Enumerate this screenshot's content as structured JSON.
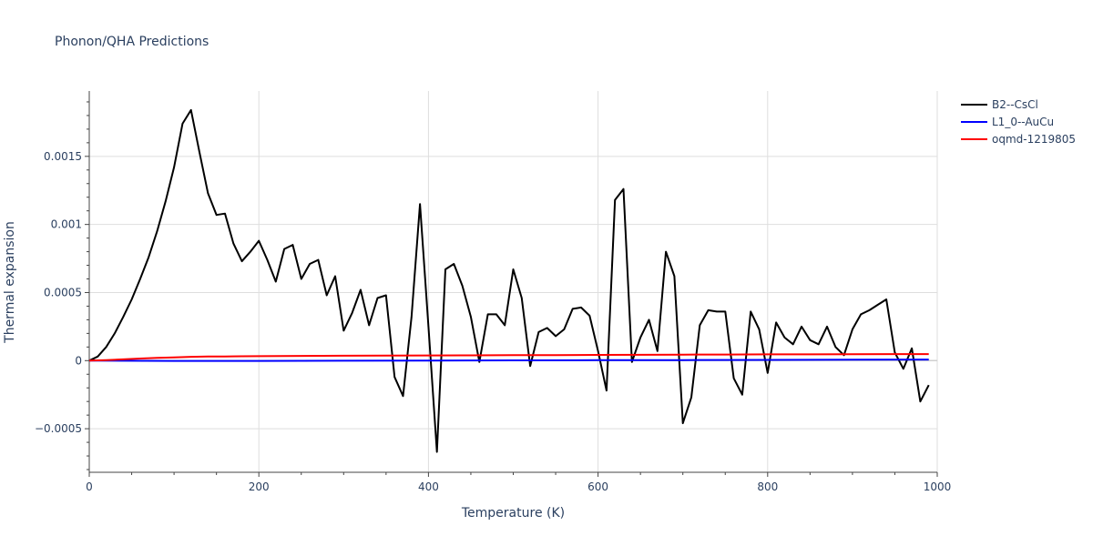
{
  "chart_data": {
    "type": "line",
    "title": "Phonon/QHA Predictions",
    "xlabel": "Temperature (K)",
    "ylabel": "Thermal expansion",
    "xlim": [
      0,
      1000
    ],
    "ylim": [
      -0.00082,
      0.00198
    ],
    "x_ticks": [
      0,
      200,
      400,
      600,
      800,
      1000
    ],
    "x_tick_labels": [
      "0",
      "200",
      "400",
      "600",
      "800",
      "1000"
    ],
    "y_ticks": [
      -0.0005,
      0,
      0.0005,
      0.001,
      0.0015
    ],
    "y_tick_labels": [
      "−0.0005",
      "0",
      "0.0005",
      "0.001",
      "0.0015"
    ],
    "grid": true,
    "legend_position": "top-right",
    "series": [
      {
        "name": "B2--CsCl",
        "color": "#000000",
        "x": [
          0,
          10,
          20,
          30,
          40,
          50,
          60,
          70,
          80,
          90,
          100,
          110,
          120,
          130,
          140,
          150,
          160,
          170,
          180,
          190,
          200,
          210,
          220,
          230,
          240,
          250,
          260,
          270,
          280,
          290,
          300,
          310,
          320,
          330,
          340,
          350,
          360,
          370,
          380,
          390,
          400,
          410,
          420,
          430,
          440,
          450,
          460,
          470,
          480,
          490,
          500,
          510,
          520,
          530,
          540,
          550,
          560,
          570,
          580,
          590,
          600,
          610,
          620,
          630,
          640,
          650,
          660,
          670,
          680,
          690,
          700,
          710,
          720,
          730,
          740,
          750,
          760,
          770,
          780,
          790,
          800,
          810,
          820,
          830,
          840,
          850,
          860,
          870,
          880,
          890,
          900,
          910,
          920,
          930,
          940,
          950,
          960,
          970,
          980,
          990
        ],
        "y": [
          0,
          3e-05,
          0.0001,
          0.0002,
          0.00032,
          0.00045,
          0.0006,
          0.00076,
          0.00095,
          0.00117,
          0.00142,
          0.00174,
          0.00184,
          0.00153,
          0.00123,
          0.00107,
          0.00108,
          0.00086,
          0.00073,
          0.0008,
          0.00088,
          0.00074,
          0.00058,
          0.00082,
          0.00085,
          0.0006,
          0.00071,
          0.00074,
          0.00048,
          0.00062,
          0.00022,
          0.00035,
          0.00052,
          0.00026,
          0.00046,
          0.00048,
          -0.00012,
          -0.00026,
          0.00032,
          0.00115,
          0.00025,
          -0.00067,
          0.00067,
          0.00071,
          0.00055,
          0.00032,
          -1e-05,
          0.00034,
          0.00034,
          0.00026,
          0.00067,
          0.00046,
          -4e-05,
          0.00021,
          0.00024,
          0.00018,
          0.00023,
          0.00038,
          0.00039,
          0.00033,
          7e-05,
          -0.00022,
          0.00118,
          0.00126,
          -1e-05,
          0.00017,
          0.0003,
          7e-05,
          0.0008,
          0.00062,
          -0.00046,
          -0.00027,
          0.00026,
          0.00037,
          0.00036,
          0.00036,
          -0.00013,
          -0.00025,
          0.00036,
          0.00023,
          -9e-05,
          0.00028,
          0.00017,
          0.00012,
          0.00025,
          0.00015,
          0.00012,
          0.00025,
          0.0001,
          4e-05,
          0.00023,
          0.00034,
          0.00037,
          0.00041,
          0.00045,
          6e-05,
          -6e-05,
          9e-05,
          -0.0003,
          -0.00018
        ]
      },
      {
        "name": "L1_0--AuCu",
        "color": "#0000ff",
        "x": [
          0,
          100,
          200,
          300,
          400,
          500,
          600,
          700,
          800,
          900,
          990
        ],
        "y": [
          0,
          -2e-06,
          -2e-06,
          -1e-06,
          0,
          2e-06,
          3e-06,
          4e-06,
          5e-06,
          7e-06,
          8e-06
        ]
      },
      {
        "name": "oqmd-1219805",
        "color": "#ff0000",
        "x": [
          0,
          20,
          40,
          60,
          80,
          100,
          120,
          140,
          160,
          180,
          200,
          250,
          300,
          350,
          400,
          450,
          500,
          550,
          600,
          650,
          700,
          750,
          800,
          850,
          900,
          950,
          990
        ],
        "y": [
          0,
          4e-06,
          9e-06,
          1.5e-05,
          2e-05,
          2.4e-05,
          2.8e-05,
          3e-05,
          3.1e-05,
          3.2e-05,
          3.3e-05,
          3.5e-05,
          3.6e-05,
          3.7e-05,
          3.8e-05,
          3.9e-05,
          4e-05,
          4.1e-05,
          4.2e-05,
          4.3e-05,
          4.4e-05,
          4.5e-05,
          4.6e-05,
          4.6e-05,
          4.7e-05,
          4.8e-05,
          4.8e-05
        ]
      }
    ]
  }
}
